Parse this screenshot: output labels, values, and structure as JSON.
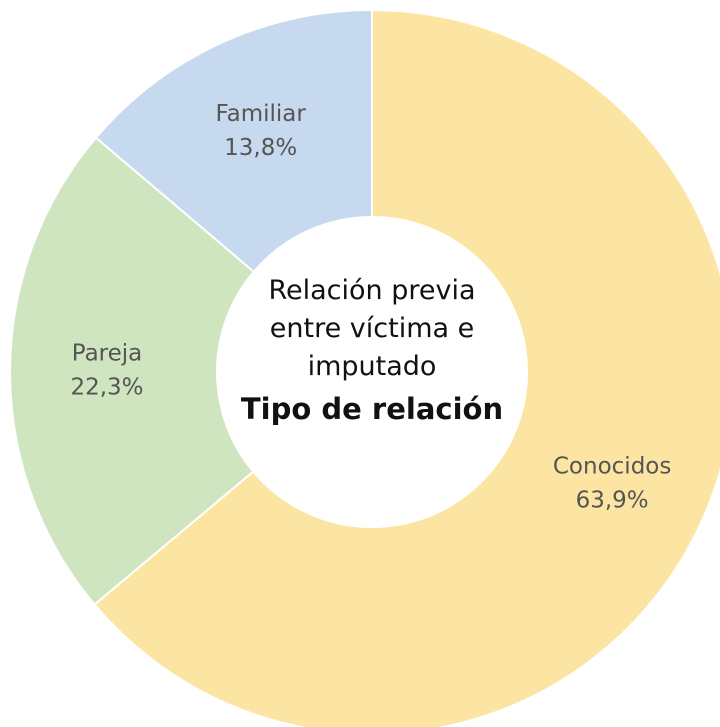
{
  "chart_data": {
    "type": "donut",
    "title": "Relación previa entre víctima e imputado",
    "subtitle": "Tipo de relación",
    "categories": [
      "Conocidos",
      "Pareja",
      "Familiar"
    ],
    "values": [
      63.9,
      22.3,
      13.8
    ],
    "value_labels": [
      "63,9%",
      "22,3%",
      "13,8%"
    ],
    "colors": [
      "#fce5a3",
      "#cfe5c0",
      "#c6d9ee"
    ]
  }
}
